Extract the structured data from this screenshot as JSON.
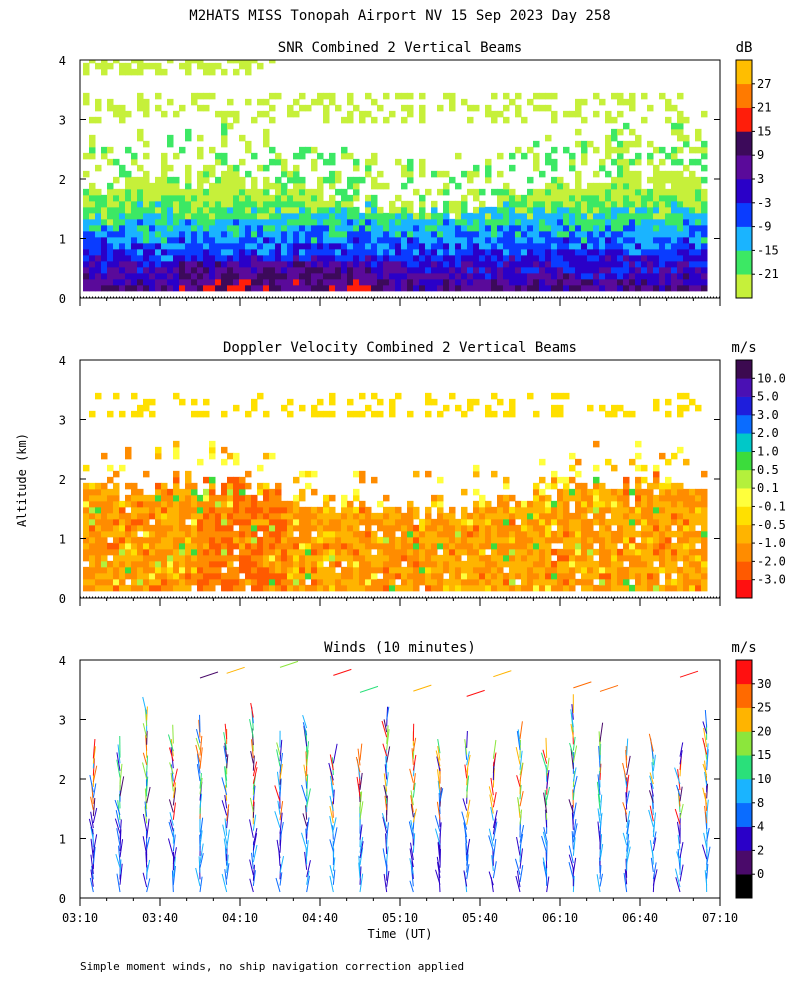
{
  "figure_title": "M2HATS MISS Tonopah Airport NV  15 Sep 2023 Day 258",
  "y_axis_label": "Altitude (km)",
  "footnote": "Simple moment winds, no ship navigation correction applied",
  "chart_data": [
    {
      "type": "heatmap",
      "id": "snr",
      "title": "SNR Combined 2 Vertical Beams",
      "units": "dB",
      "xlabel": "",
      "ylabel": "Altitude (km)",
      "xlim": [
        "03:10",
        "07:10"
      ],
      "ylim": [
        0,
        4
      ],
      "yticks": [
        0,
        1,
        2,
        3,
        4
      ],
      "colorbar": {
        "colors": [
          "#c6f03a",
          "#3ce864",
          "#1ab4ff",
          "#0a3cff",
          "#2a00c8",
          "#5a0a9a",
          "#3c0a5a",
          "#ff1e0a",
          "#ff7a00",
          "#ffbe00"
        ],
        "labels": [
          "-21",
          "-15",
          "-9",
          "-3",
          "3",
          "9",
          "15",
          "21",
          "27"
        ]
      }
    },
    {
      "type": "heatmap",
      "id": "doppler",
      "title": "Doppler Velocity Combined 2 Vertical Beams",
      "units": "m/s",
      "xlabel": "",
      "ylabel": "Altitude (km)",
      "xlim": [
        "03:10",
        "07:10"
      ],
      "ylim": [
        0,
        4
      ],
      "yticks": [
        0,
        1,
        2,
        3,
        4
      ],
      "colorbar": {
        "colors": [
          "#ff1010",
          "#ff5a00",
          "#ff8c00",
          "#ffb400",
          "#ffe000",
          "#ffff3c",
          "#b4f03c",
          "#3cdc3c",
          "#00c8c8",
          "#0a6cff",
          "#1e1edc",
          "#4a10b4",
          "#3c0a50"
        ],
        "labels": [
          "-3.0",
          "-2.0",
          "-1.0",
          "-0.5",
          "-0.1",
          "0.1",
          "0.5",
          "1.0",
          "2.0",
          "3.0",
          "5.0",
          "10.0"
        ]
      }
    },
    {
      "type": "scatter",
      "id": "winds",
      "title": "Winds (10 minutes)",
      "units": "m/s",
      "xlabel": "Time (UT)",
      "ylabel": "Altitude (km)",
      "xlim": [
        "03:10",
        "07:10"
      ],
      "ylim": [
        0,
        4
      ],
      "yticks": [
        0,
        1,
        2,
        3,
        4
      ],
      "x_tick_labels": [
        "03:10",
        "03:40",
        "04:10",
        "04:40",
        "05:10",
        "05:40",
        "06:10",
        "06:40",
        "07:10"
      ],
      "colorbar": {
        "colors": [
          "#000000",
          "#4a0a6a",
          "#2a00c8",
          "#0a6cff",
          "#1ab4ff",
          "#2ae07a",
          "#8ce63c",
          "#ffb400",
          "#ff6a00",
          "#ff1010"
        ],
        "labels": [
          "0",
          "2",
          "4",
          "8",
          "10",
          "15",
          "20",
          "25",
          "30"
        ]
      }
    }
  ]
}
